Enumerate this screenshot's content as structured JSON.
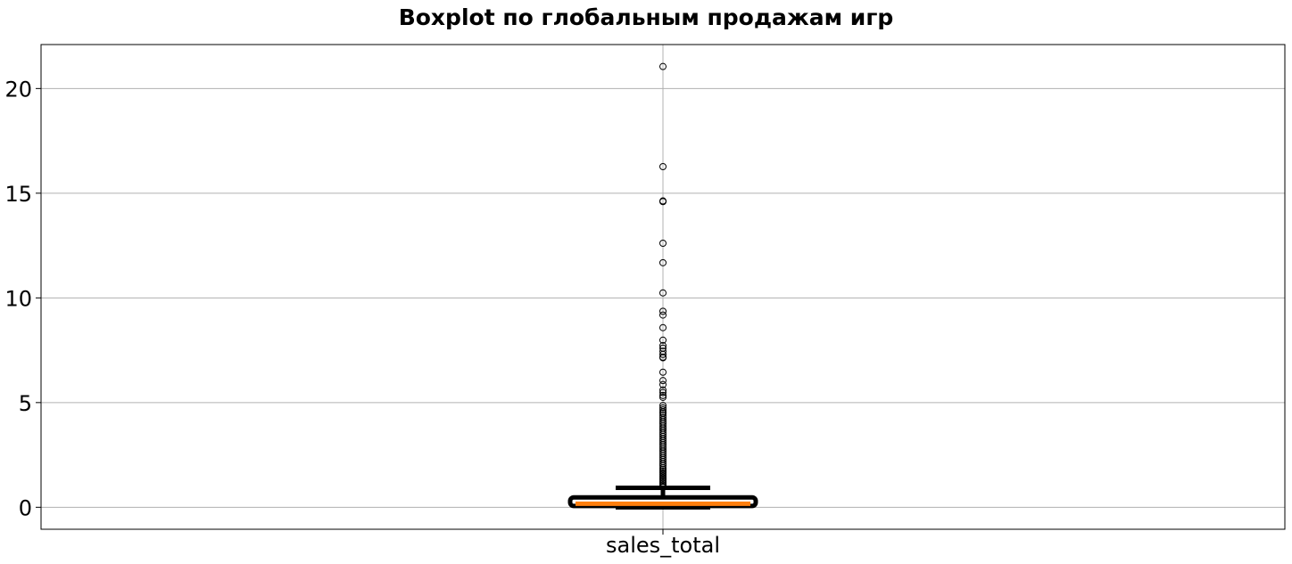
{
  "chart_data": {
    "type": "boxplot",
    "title": "Boxplot по глобальным продажам игр",
    "xlabel": "",
    "ylabel": "",
    "categories": [
      "sales_total"
    ],
    "ylim": [
      -1.05,
      22.1
    ],
    "yticks": [
      0,
      5,
      10,
      15,
      20
    ],
    "grid": true,
    "series": [
      {
        "name": "",
        "stats": {
          "whisker_low": 0.0,
          "q1": 0.06,
          "median": 0.17,
          "q3": 0.47,
          "whisker_high": 0.93
        },
        "outliers": [
          21.05,
          16.27,
          14.63,
          14.6,
          12.61,
          11.68,
          10.24,
          9.36,
          9.18,
          8.58,
          7.98,
          7.72,
          7.6,
          7.45,
          7.3,
          7.17,
          7.14,
          6.45,
          6.05,
          5.86,
          5.6,
          5.48,
          5.34,
          5.25,
          4.86,
          4.75,
          4.65,
          4.55,
          4.48,
          4.38,
          4.28,
          4.18,
          4.08,
          3.98,
          3.88,
          3.78,
          3.68,
          3.58,
          3.48,
          3.38,
          3.28,
          3.18,
          3.08,
          2.98,
          2.88,
          2.78,
          2.68,
          2.58,
          2.48,
          2.38,
          2.28,
          2.18,
          2.08,
          1.98,
          1.88,
          1.8,
          1.72,
          1.64,
          1.56,
          1.48,
          1.4,
          1.32,
          1.24,
          1.16,
          1.08,
          1.0,
          0.96
        ]
      }
    ],
    "colors": {
      "box": "#000000",
      "median": "#ff7f0e",
      "grid": "#b0b0b0",
      "outlier": "#000000"
    }
  }
}
